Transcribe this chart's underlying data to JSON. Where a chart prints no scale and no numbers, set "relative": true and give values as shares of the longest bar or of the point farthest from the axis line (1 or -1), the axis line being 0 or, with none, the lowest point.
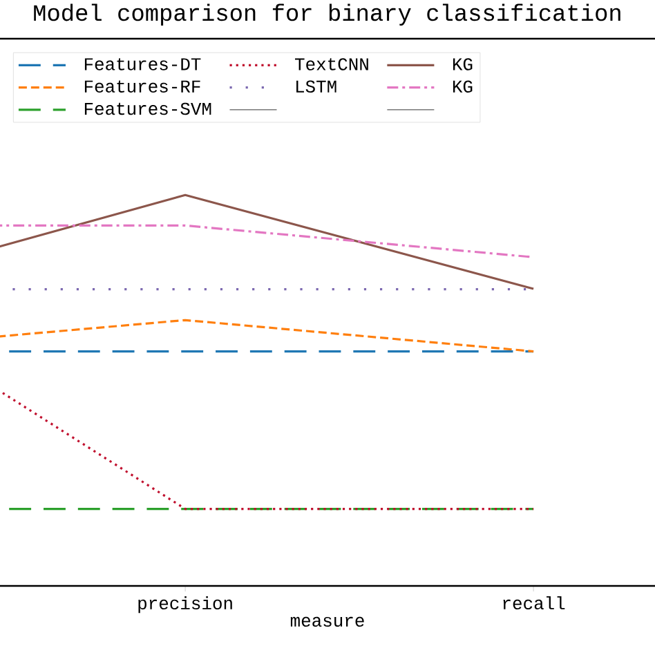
{
  "chart_data": {
    "type": "line",
    "title": "Model comparison for binary classification",
    "xlabel": "measure",
    "categories": [
      null,
      "precision",
      "recall"
    ],
    "relative": true,
    "legend": "top",
    "grid": false,
    "series": [
      {
        "name": "Features-DT",
        "color": "#1f77b4",
        "line_style": "loosely dashed",
        "values": [
          0.6,
          0.6,
          0.6
        ]
      },
      {
        "name": "Features-RF",
        "color": "#ff7f0e",
        "line_style": "dashed",
        "values": [
          0.602,
          0.68,
          0.6
        ]
      },
      {
        "name": "Features-SVM",
        "color": "#2ca02c",
        "line_style": "loosely dashed",
        "values": [
          0.197,
          0.197,
          0.197
        ]
      },
      {
        "name": "TextCNN",
        "color": "#c0102e",
        "line_style": "dotted",
        "values": [
          0.763,
          0.197,
          0.197
        ]
      },
      {
        "name": "LSTM",
        "color": "#7b68b0",
        "line_style": "loosely dotted",
        "values": [
          0.759,
          0.759,
          0.759
        ]
      },
      {
        "name": "KG",
        "color": "#8c564b",
        "line_style": "solid",
        "values": [
          0.753,
          1.0,
          0.76
        ]
      },
      {
        "name": "KG",
        "color": "#e377c2",
        "line_style": "dashdot",
        "values": [
          0.922,
          0.922,
          0.841
        ]
      }
    ]
  }
}
